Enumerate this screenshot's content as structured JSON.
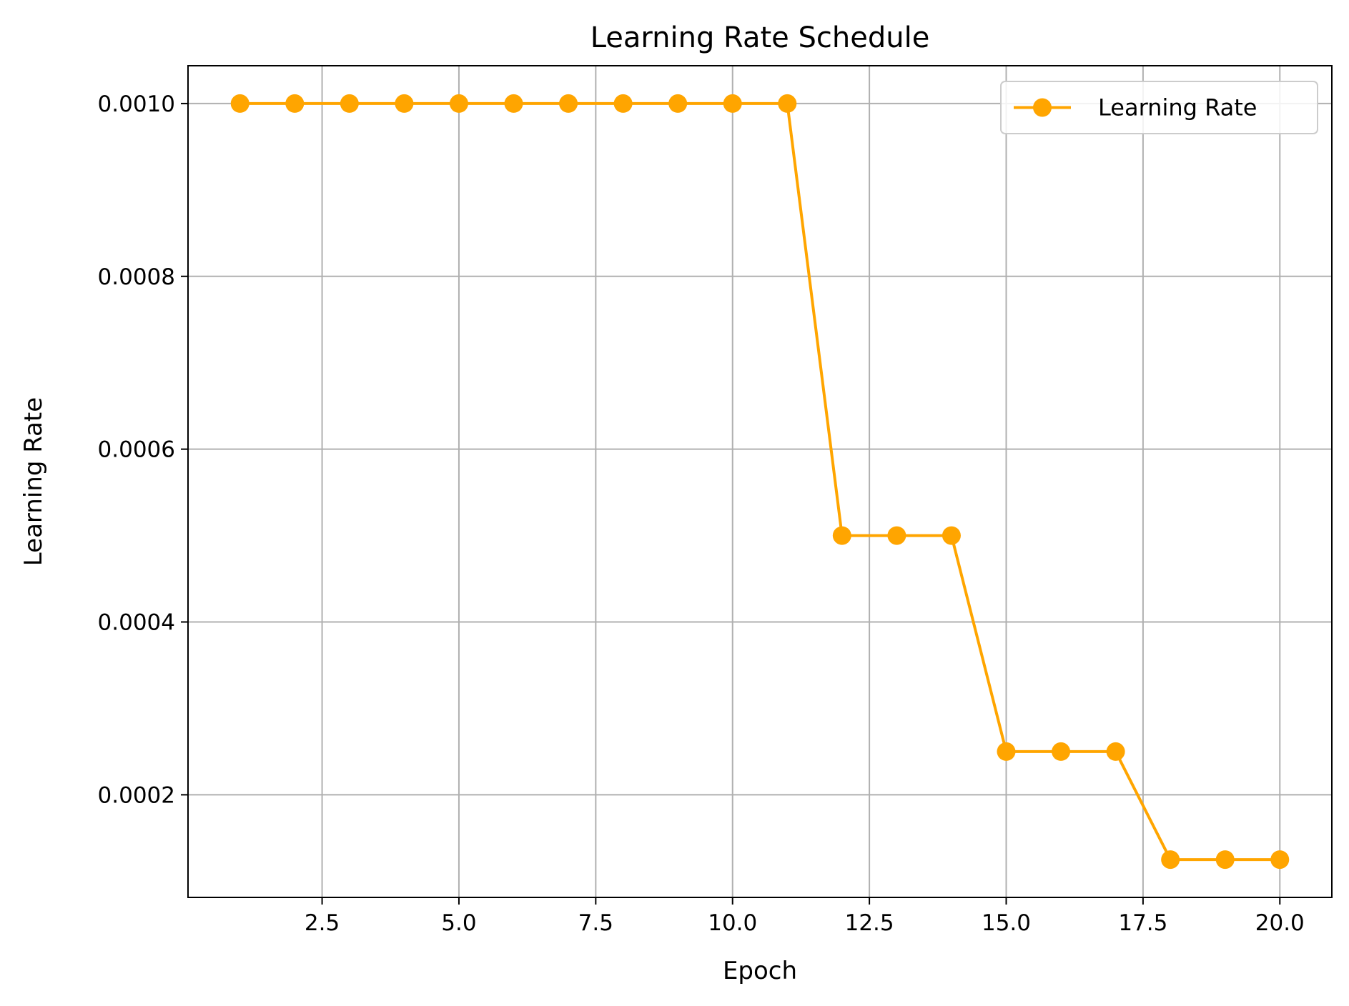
{
  "chart_data": {
    "type": "line",
    "title": "Learning Rate Schedule",
    "xlabel": "Epoch",
    "ylabel": "Learning Rate",
    "xlim": [
      0.05,
      20.95
    ],
    "ylim": [
      8.125e-05,
      0.00104375
    ],
    "xticks": [
      2.5,
      5.0,
      7.5,
      10.0,
      12.5,
      15.0,
      17.5,
      20.0
    ],
    "xtick_labels": [
      "2.5",
      "5.0",
      "7.5",
      "10.0",
      "12.5",
      "15.0",
      "17.5",
      "20.0"
    ],
    "yticks": [
      0.0002,
      0.0004,
      0.0006,
      0.0008,
      0.001
    ],
    "ytick_labels": [
      "0.0002",
      "0.0004",
      "0.0006",
      "0.0008",
      "0.0010"
    ],
    "grid": true,
    "legend_position": "top-right",
    "series": [
      {
        "name": "Learning Rate",
        "color": "#FFA500",
        "marker": "circle",
        "x": [
          1,
          2,
          3,
          4,
          5,
          6,
          7,
          8,
          9,
          10,
          11,
          12,
          13,
          14,
          15,
          16,
          17,
          18,
          19,
          20
        ],
        "y": [
          0.001,
          0.001,
          0.001,
          0.001,
          0.001,
          0.001,
          0.001,
          0.001,
          0.001,
          0.001,
          0.001,
          0.0005,
          0.0005,
          0.0005,
          0.00025,
          0.00025,
          0.00025,
          0.000125,
          0.000125,
          0.000125
        ]
      }
    ]
  }
}
